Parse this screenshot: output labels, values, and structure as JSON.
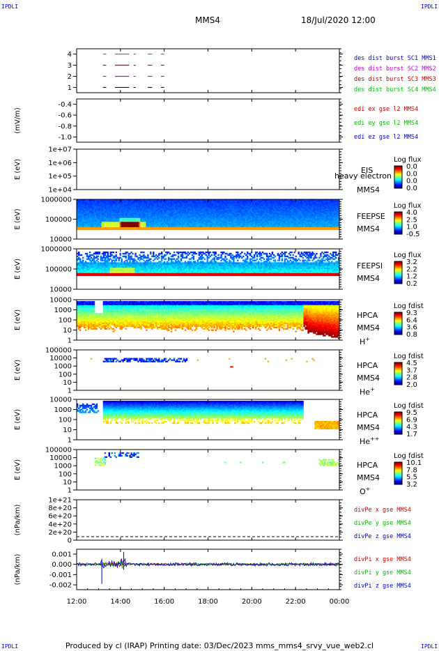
{
  "corners": {
    "tl": "IPDLI",
    "tr": "IPDLI",
    "bl": "IPDLI",
    "br": "IPDLI"
  },
  "header": {
    "spacecraft": "MMS4",
    "datetime": "18/Jul/2020 12:00"
  },
  "footer": {
    "text": "Produced by cl (IRAP)   Printing date: 03/Dec/2023   mms_mms4_srvy_vue_web2.cl"
  },
  "chart_data": [
    {
      "type": "line",
      "id": "burst",
      "yticks": [
        "4",
        "3",
        "2",
        "1"
      ],
      "legend": [
        {
          "name": "des dist burst SC1 MMS1",
          "color": "#0000cc"
        },
        {
          "name": "des dist burst SC2 MMS2",
          "color": "#cc00cc"
        },
        {
          "name": "des dist burst SC3 MMS3",
          "color": "#cc0000"
        },
        {
          "name": "des dist burst SC4 MMS4",
          "color": "#00bb00"
        }
      ]
    },
    {
      "type": "line",
      "id": "edi",
      "ylabel": "(mV/m)",
      "yticks": [
        "-0.4",
        "-0.6",
        "-0.8",
        "-1.0"
      ],
      "legend": [
        {
          "name": "edi ex gse l2 MMS4",
          "color": "#cc0000"
        },
        {
          "name": "edi ey gse l2 MMS4",
          "color": "#00bb00"
        },
        {
          "name": "edi ez gse l2 MMS4",
          "color": "#0000cc"
        }
      ]
    },
    {
      "type": "heatmap",
      "id": "eis",
      "ylabel": "E (eV)",
      "yticks": [
        "1e+07",
        "1e+06",
        "1e+05",
        "1e+04"
      ],
      "instrument": [
        "EIS",
        "MMS4"
      ],
      "overlay": "heavy electron to",
      "cbar_title": "Log flux",
      "cbar_ticks": [
        "0.0",
        "0.0",
        "0.0",
        "0.0"
      ]
    },
    {
      "type": "heatmap",
      "id": "feepse",
      "ylabel": "E (eV)",
      "yticks": [
        "1000000",
        "100000",
        "10000"
      ],
      "instrument": [
        "FEEPSE",
        "MMS4"
      ],
      "cbar_title": "Log flux",
      "cbar_ticks": [
        "4.0",
        "2.5",
        "1.0",
        "-0.5"
      ]
    },
    {
      "type": "heatmap",
      "id": "feepsi",
      "ylabel": "E (eV)",
      "yticks": [
        "1000000",
        "100000",
        "10000"
      ],
      "instrument": [
        "FEEPSI",
        "MMS4"
      ],
      "cbar_title": "Log flux",
      "cbar_ticks": [
        "3.2",
        "2.2",
        "1.2",
        "0.2"
      ]
    },
    {
      "type": "heatmap",
      "id": "hpca_h",
      "ylabel": "E (eV)",
      "yticks": [
        "10000",
        "1000",
        "100",
        "10",
        "1"
      ],
      "instrument": [
        "HPCA",
        "MMS4"
      ],
      "species": "H",
      "charge": "+",
      "cbar_title": "Log fdist",
      "cbar_ticks": [
        "9.3",
        "6.4",
        "3.6",
        "0.8"
      ]
    },
    {
      "type": "heatmap",
      "id": "hpca_he",
      "ylabel": "E (eV)",
      "yticks": [
        "100000",
        "10000",
        "1000",
        "100",
        "10",
        "1"
      ],
      "instrument": [
        "HPCA",
        "MMS4"
      ],
      "species": "He",
      "charge": "+",
      "cbar_title": "Log fdist",
      "cbar_ticks": [
        "4.5",
        "3.7",
        "2.8",
        "2.0"
      ]
    },
    {
      "type": "heatmap",
      "id": "hpca_hepp",
      "ylabel": "E (eV)",
      "yticks": [
        "10000",
        "1000",
        "100",
        "10",
        "1"
      ],
      "instrument": [
        "HPCA",
        "MMS4"
      ],
      "species": "He",
      "charge": "++",
      "cbar_title": "Log fdist",
      "cbar_ticks": [
        "9.5",
        "6.9",
        "4.3",
        "1.7"
      ]
    },
    {
      "type": "heatmap",
      "id": "hpca_o",
      "ylabel": "E (eV)",
      "yticks": [
        "100000",
        "10000",
        "1000",
        "100",
        "10",
        "1"
      ],
      "instrument": [
        "HPCA",
        "MMS4"
      ],
      "species": "O",
      "charge": "+",
      "cbar_title": "Log fdist",
      "cbar_ticks": [
        "10.1",
        "7.8",
        "5.5",
        "3.2"
      ]
    },
    {
      "type": "line",
      "id": "divpe",
      "ylabel": "(nPa/km)",
      "yticks": [
        "1e+21",
        "8e+20",
        "6e+20",
        "4e+20",
        "2e+20",
        "0"
      ],
      "legend": [
        {
          "name": "divPe x gse MMS4",
          "color": "#cc0000"
        },
        {
          "name": "divPe y gse MMS4",
          "color": "#00bb00"
        },
        {
          "name": "divPe z gse MMS4",
          "color": "#0000cc"
        }
      ]
    },
    {
      "type": "line",
      "id": "divpi",
      "ylabel": "(nPa/km)",
      "yticks": [
        "0.001",
        "0.000",
        "-0.001",
        "-0.002"
      ],
      "legend": [
        {
          "name": "divPi x gse MMS4",
          "color": "#cc0000"
        },
        {
          "name": "divPi y gse MMS4",
          "color": "#00bb00"
        },
        {
          "name": "divPi z gse MMS4",
          "color": "#0000cc"
        }
      ]
    }
  ],
  "xaxis": {
    "ticks": [
      "12:00",
      "14:00",
      "16:00",
      "18:00",
      "20:00",
      "22:00",
      "00:00"
    ]
  }
}
